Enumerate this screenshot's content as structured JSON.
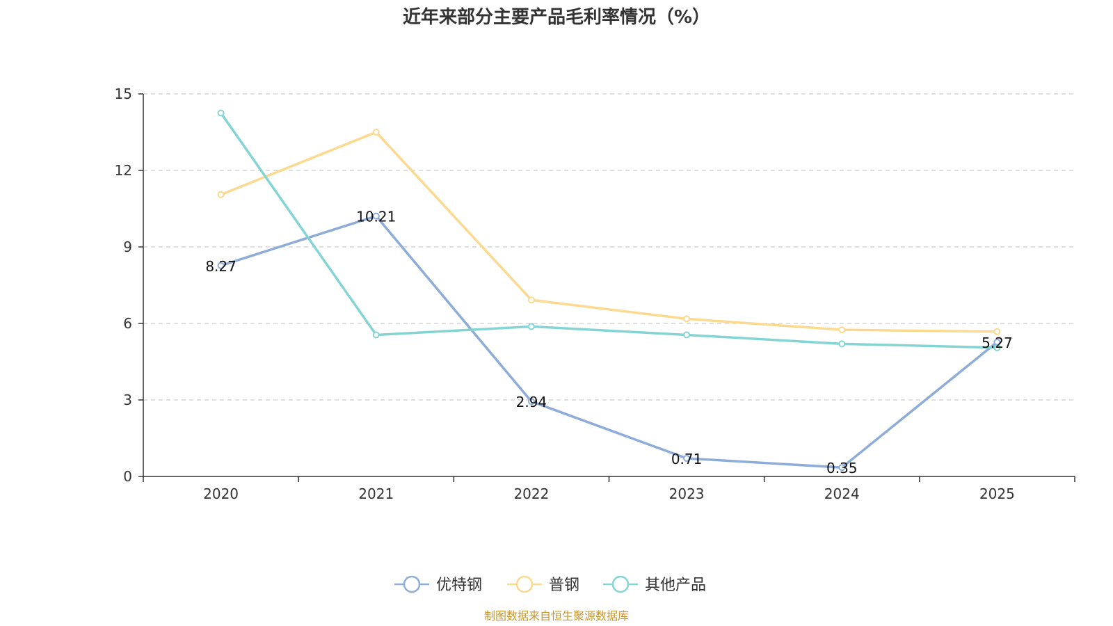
{
  "chart_data": {
    "type": "line",
    "title": "近年来部分主要产品毛利率情况（%）",
    "categories": [
      "2020",
      "2021",
      "2022",
      "2023",
      "2024",
      "2025"
    ],
    "ylim": [
      0,
      15
    ],
    "yticks": [
      0,
      3,
      6,
      9,
      12,
      15
    ],
    "grid": true,
    "legend_position": "bottom",
    "series": [
      {
        "name": "优特钢",
        "color": "#8eacd8",
        "values": [
          8.27,
          10.21,
          2.94,
          0.71,
          0.35,
          5.27
        ],
        "labels": [
          "8.27",
          "10.21",
          "2.94",
          "0.71",
          "0.35",
          "5.27"
        ]
      },
      {
        "name": "普钢",
        "color": "#fbd98f",
        "values": [
          11.05,
          13.5,
          6.92,
          6.18,
          5.75,
          5.68
        ],
        "labels": null
      },
      {
        "name": "其他产品",
        "color": "#84d4d4",
        "values": [
          14.25,
          5.55,
          5.88,
          5.55,
          5.2,
          5.05
        ],
        "labels": null
      }
    ],
    "source": "制图数据来自恒生聚源数据库"
  }
}
